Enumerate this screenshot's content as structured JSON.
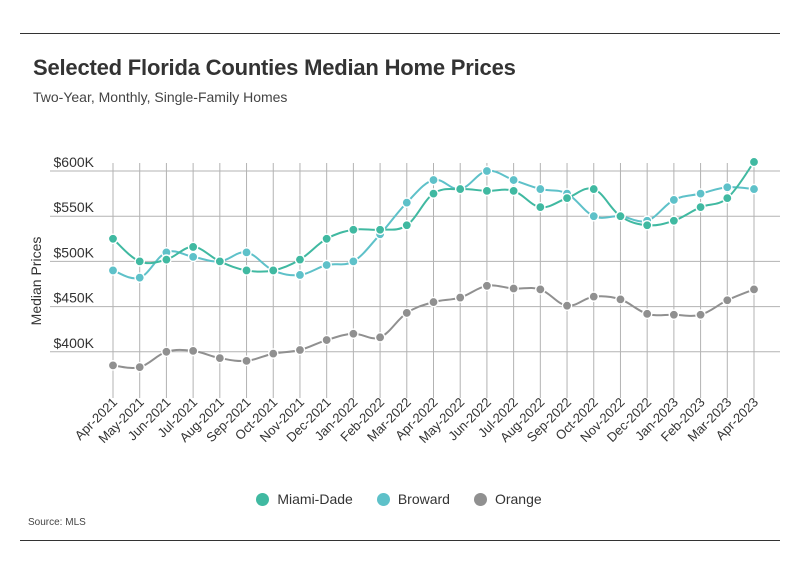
{
  "header": {
    "title": "Selected Florida Counties Median Home Prices",
    "subtitle": "Two-Year, Monthly, Single-Family Homes"
  },
  "footer": {
    "source": "Source:  MLS"
  },
  "colors": {
    "miami": "#40B9A1",
    "broward": "#5EC1C9",
    "orange": "#909090",
    "grid": "#b3b3b3"
  },
  "chart_data": {
    "type": "line",
    "ylabel": "Median Prices",
    "ylim": [
      365,
      620
    ],
    "yticks": [
      400,
      450,
      500,
      550,
      600
    ],
    "ytick_labels": [
      "$400K",
      "$450K",
      "$500K",
      "$550K",
      "$600K"
    ],
    "grid": true,
    "legend": "bottom-center",
    "categories": [
      "Apr-2021",
      "May-2021",
      "Jun-2021",
      "Jul-2021",
      "Aug-2021",
      "Sep-2021",
      "Oct-2021",
      "Nov-2021",
      "Dec-2021",
      "Jan-2022",
      "Feb-2022",
      "Mar-2022",
      "Apr-2022",
      "May-2022",
      "Jun-2022",
      "Jul-2022",
      "Aug-2022",
      "Sep-2022",
      "Oct-2022",
      "Nov-2022",
      "Dec-2022",
      "Jan-2023",
      "Feb-2023",
      "Mar-2023",
      "Apr-2023"
    ],
    "series": [
      {
        "name": "Miami-Dade",
        "color": "#40B9A1",
        "values": [
          525,
          500,
          502,
          516,
          500,
          490,
          490,
          502,
          525,
          535,
          535,
          540,
          575,
          580,
          578,
          578,
          560,
          570,
          580,
          550,
          540,
          545,
          560,
          570,
          610
        ]
      },
      {
        "name": "Broward",
        "color": "#5EC1C9",
        "values": [
          490,
          482,
          510,
          505,
          500,
          510,
          490,
          485,
          496,
          500,
          530,
          565,
          590,
          580,
          600,
          590,
          580,
          575,
          550,
          550,
          545,
          568,
          575,
          582,
          580
        ]
      },
      {
        "name": "Orange",
        "color": "#909090",
        "values": [
          385,
          383,
          400,
          401,
          393,
          390,
          398,
          402,
          413,
          420,
          416,
          443,
          455,
          460,
          473,
          470,
          469,
          451,
          461,
          458,
          442,
          441,
          441,
          457,
          469
        ]
      }
    ]
  }
}
